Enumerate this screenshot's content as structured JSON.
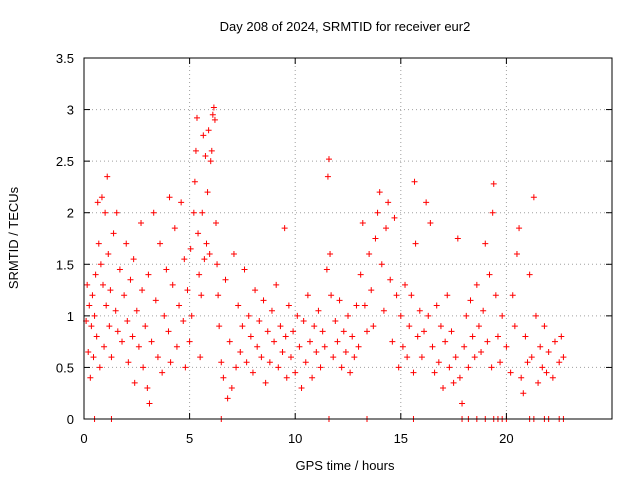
{
  "chart_data": {
    "type": "scatter",
    "title": "Day 208 of 2024, SRMTID for receiver eur2",
    "xlabel": "GPS time / hours",
    "ylabel": "SRMTID / TECUs",
    "xlim": [
      0,
      25
    ],
    "ylim": [
      0,
      3.5
    ],
    "xticks": [
      0,
      5,
      10,
      15,
      20
    ],
    "yticks": [
      0,
      0.5,
      1,
      1.5,
      2,
      2.5,
      3,
      3.5
    ],
    "xtick_labels": [
      "0",
      "5",
      "10",
      "15",
      "20"
    ],
    "ytick_labels": [
      "0",
      "0.5",
      "1",
      "1.5",
      "2",
      "2.5",
      "3",
      "3.5"
    ],
    "grid": true,
    "marker": "plus",
    "color": "#ff0000",
    "series": [
      {
        "name": "SRMTID",
        "points": [
          [
            0.1,
            0.95
          ],
          [
            0.15,
            1.3
          ],
          [
            0.2,
            0.65
          ],
          [
            0.25,
            1.1
          ],
          [
            0.3,
            0.4
          ],
          [
            0.35,
            0.9
          ],
          [
            0.4,
            1.2
          ],
          [
            0.45,
            0.6
          ],
          [
            0.5,
            1.0
          ],
          [
            0.55,
            1.4
          ],
          [
            0.6,
            0.8
          ],
          [
            0.65,
            2.1
          ],
          [
            0.7,
            1.7
          ],
          [
            0.75,
            0.5
          ],
          [
            0.8,
            1.5
          ],
          [
            0.85,
            2.15
          ],
          [
            0.9,
            1.3
          ],
          [
            0.95,
            0.7
          ],
          [
            1.0,
            2.0
          ],
          [
            1.05,
            1.1
          ],
          [
            1.1,
            2.35
          ],
          [
            1.15,
            1.6
          ],
          [
            1.2,
            0.9
          ],
          [
            1.25,
            1.25
          ],
          [
            1.3,
            0.6
          ],
          [
            1.4,
            1.8
          ],
          [
            1.5,
            1.05
          ],
          [
            1.55,
            2.0
          ],
          [
            1.6,
            0.85
          ],
          [
            1.7,
            1.45
          ],
          [
            1.8,
            0.75
          ],
          [
            1.9,
            1.2
          ],
          [
            2.0,
            1.7
          ],
          [
            2.05,
            0.95
          ],
          [
            2.1,
            0.55
          ],
          [
            2.2,
            1.35
          ],
          [
            2.3,
            0.8
          ],
          [
            2.35,
            1.55
          ],
          [
            2.4,
            0.35
          ],
          [
            2.5,
            1.05
          ],
          [
            2.6,
            0.7
          ],
          [
            2.7,
            1.9
          ],
          [
            2.75,
            1.25
          ],
          [
            2.8,
            0.5
          ],
          [
            2.9,
            0.9
          ],
          [
            3.0,
            0.3
          ],
          [
            3.05,
            1.4
          ],
          [
            3.1,
            0.15
          ],
          [
            3.2,
            0.75
          ],
          [
            3.3,
            2.0
          ],
          [
            3.4,
            1.15
          ],
          [
            3.5,
            0.6
          ],
          [
            3.6,
            1.7
          ],
          [
            3.7,
            0.45
          ],
          [
            3.8,
            1.0
          ],
          [
            3.9,
            1.45
          ],
          [
            4.0,
            0.85
          ],
          [
            4.05,
            2.15
          ],
          [
            4.1,
            0.55
          ],
          [
            4.2,
            1.3
          ],
          [
            4.3,
            1.85
          ],
          [
            4.4,
            0.7
          ],
          [
            4.5,
            1.1
          ],
          [
            4.6,
            2.1
          ],
          [
            4.7,
            0.95
          ],
          [
            4.75,
            1.55
          ],
          [
            4.8,
            0.5
          ],
          [
            4.9,
            1.25
          ],
          [
            5.0,
            0.75
          ],
          [
            5.05,
            1.65
          ],
          [
            5.1,
            1.0
          ],
          [
            5.2,
            2.0
          ],
          [
            5.25,
            2.3
          ],
          [
            5.3,
            2.6
          ],
          [
            5.35,
            2.92
          ],
          [
            5.4,
            1.8
          ],
          [
            5.45,
            1.4
          ],
          [
            5.5,
            0.6
          ],
          [
            5.55,
            1.2
          ],
          [
            5.6,
            2.0
          ],
          [
            5.65,
            2.75
          ],
          [
            5.7,
            1.55
          ],
          [
            5.75,
            2.55
          ],
          [
            5.8,
            1.7
          ],
          [
            5.85,
            2.2
          ],
          [
            5.9,
            2.8
          ],
          [
            5.95,
            1.6
          ],
          [
            6.0,
            2.5
          ],
          [
            6.05,
            2.6
          ],
          [
            6.1,
            2.95
          ],
          [
            6.15,
            3.02
          ],
          [
            6.2,
            2.9
          ],
          [
            6.25,
            1.9
          ],
          [
            6.3,
            1.5
          ],
          [
            6.35,
            1.2
          ],
          [
            6.4,
            0.9
          ],
          [
            6.5,
            0.55
          ],
          [
            6.6,
            0.4
          ],
          [
            6.7,
            1.35
          ],
          [
            6.8,
            0.2
          ],
          [
            6.9,
            0.75
          ],
          [
            7.0,
            0.3
          ],
          [
            7.1,
            1.6
          ],
          [
            7.2,
            0.5
          ],
          [
            7.3,
            1.1
          ],
          [
            7.4,
            0.65
          ],
          [
            7.5,
            0.9
          ],
          [
            7.6,
            1.45
          ],
          [
            7.7,
            0.55
          ],
          [
            7.8,
            1.0
          ],
          [
            7.9,
            0.8
          ],
          [
            8.0,
            0.45
          ],
          [
            8.1,
            1.25
          ],
          [
            8.2,
            0.7
          ],
          [
            8.3,
            0.95
          ],
          [
            8.4,
            0.6
          ],
          [
            8.5,
            1.15
          ],
          [
            8.6,
            0.35
          ],
          [
            8.7,
            0.85
          ],
          [
            8.8,
            0.55
          ],
          [
            8.9,
            1.05
          ],
          [
            9.0,
            0.75
          ],
          [
            9.1,
            1.3
          ],
          [
            9.2,
            0.5
          ],
          [
            9.3,
            0.9
          ],
          [
            9.4,
            0.65
          ],
          [
            9.5,
            1.85
          ],
          [
            9.55,
            0.8
          ],
          [
            9.6,
            0.4
          ],
          [
            9.7,
            1.1
          ],
          [
            9.8,
            0.6
          ],
          [
            9.9,
            0.85
          ],
          [
            10.0,
            0.45
          ],
          [
            10.1,
            1.0
          ],
          [
            10.2,
            0.7
          ],
          [
            10.3,
            0.3
          ],
          [
            10.4,
            0.95
          ],
          [
            10.5,
            0.55
          ],
          [
            10.6,
            1.2
          ],
          [
            10.7,
            0.75
          ],
          [
            10.8,
            0.4
          ],
          [
            10.9,
            0.9
          ],
          [
            11.0,
            0.65
          ],
          [
            11.1,
            1.05
          ],
          [
            11.2,
            0.5
          ],
          [
            11.3,
            0.85
          ],
          [
            11.4,
            0.7
          ],
          [
            11.5,
            1.45
          ],
          [
            11.55,
            2.35
          ],
          [
            11.6,
            2.52
          ],
          [
            11.65,
            1.6
          ],
          [
            11.7,
            1.2
          ],
          [
            11.8,
            0.6
          ],
          [
            11.9,
            0.95
          ],
          [
            12.0,
            0.75
          ],
          [
            12.1,
            1.15
          ],
          [
            12.2,
            0.5
          ],
          [
            12.3,
            0.85
          ],
          [
            12.4,
            0.65
          ],
          [
            12.5,
            1.0
          ],
          [
            12.6,
            0.45
          ],
          [
            12.7,
            0.8
          ],
          [
            12.8,
            0.6
          ],
          [
            12.9,
            1.1
          ],
          [
            13.0,
            0.7
          ],
          [
            13.1,
            1.4
          ],
          [
            13.2,
            1.9
          ],
          [
            13.3,
            1.1
          ],
          [
            13.4,
            0.85
          ],
          [
            13.5,
            1.6
          ],
          [
            13.6,
            1.25
          ],
          [
            13.7,
            0.9
          ],
          [
            13.8,
            1.75
          ],
          [
            13.9,
            2.0
          ],
          [
            14.0,
            2.2
          ],
          [
            14.1,
            1.5
          ],
          [
            14.2,
            1.05
          ],
          [
            14.3,
            1.85
          ],
          [
            14.4,
            2.1
          ],
          [
            14.5,
            1.35
          ],
          [
            14.6,
            0.75
          ],
          [
            14.7,
            1.95
          ],
          [
            14.8,
            1.2
          ],
          [
            14.9,
            0.5
          ],
          [
            15.0,
            1.0
          ],
          [
            15.1,
            0.7
          ],
          [
            15.2,
            1.3
          ],
          [
            15.3,
            0.6
          ],
          [
            15.4,
            0.9
          ],
          [
            15.5,
            1.2
          ],
          [
            15.6,
            0.45
          ],
          [
            15.65,
            2.3
          ],
          [
            15.7,
            1.7
          ],
          [
            15.8,
            0.8
          ],
          [
            15.9,
            1.05
          ],
          [
            16.0,
            0.6
          ],
          [
            16.1,
            0.85
          ],
          [
            16.2,
            2.1
          ],
          [
            16.3,
            1.0
          ],
          [
            16.4,
            1.9
          ],
          [
            16.5,
            0.7
          ],
          [
            16.6,
            0.45
          ],
          [
            16.7,
            1.1
          ],
          [
            16.8,
            0.55
          ],
          [
            16.9,
            0.9
          ],
          [
            17.0,
            0.3
          ],
          [
            17.1,
            0.75
          ],
          [
            17.2,
            1.2
          ],
          [
            17.3,
            0.5
          ],
          [
            17.4,
            0.85
          ],
          [
            17.5,
            0.35
          ],
          [
            17.6,
            0.6
          ],
          [
            17.7,
            1.75
          ],
          [
            17.8,
            0.4
          ],
          [
            17.9,
            0.15
          ],
          [
            18.0,
            0.7
          ],
          [
            18.1,
            1.0
          ],
          [
            18.2,
            0.5
          ],
          [
            18.3,
            1.15
          ],
          [
            18.4,
            0.8
          ],
          [
            18.5,
            0.6
          ],
          [
            18.6,
            1.3
          ],
          [
            18.7,
            0.9
          ],
          [
            18.8,
            0.65
          ],
          [
            18.9,
            1.05
          ],
          [
            19.0,
            1.7
          ],
          [
            19.1,
            0.75
          ],
          [
            19.2,
            1.4
          ],
          [
            19.3,
            0.5
          ],
          [
            19.35,
            2.0
          ],
          [
            19.4,
            2.28
          ],
          [
            19.5,
            1.2
          ],
          [
            19.6,
            0.8
          ],
          [
            19.7,
            0.55
          ],
          [
            19.8,
            1.0
          ],
          [
            20.0,
            0.7
          ],
          [
            20.2,
            0.45
          ],
          [
            20.3,
            1.2
          ],
          [
            20.4,
            0.9
          ],
          [
            20.5,
            1.6
          ],
          [
            20.6,
            1.85
          ],
          [
            20.7,
            0.4
          ],
          [
            20.8,
            0.25
          ],
          [
            20.9,
            0.8
          ],
          [
            21.0,
            0.55
          ],
          [
            21.1,
            1.4
          ],
          [
            21.2,
            0.6
          ],
          [
            21.3,
            2.15
          ],
          [
            21.4,
            1.0
          ],
          [
            21.5,
            0.35
          ],
          [
            21.6,
            0.7
          ],
          [
            21.7,
            0.5
          ],
          [
            21.8,
            0.9
          ],
          [
            21.9,
            0.45
          ],
          [
            22.0,
            0.65
          ],
          [
            22.2,
            0.4
          ],
          [
            22.3,
            0.75
          ],
          [
            22.5,
            0.55
          ],
          [
            22.6,
            0.8
          ],
          [
            22.7,
            0.6
          ],
          [
            0.5,
            0.0
          ],
          [
            1.3,
            0.0
          ],
          [
            6.5,
            0.0
          ],
          [
            11.6,
            0.0
          ],
          [
            13.4,
            0.0
          ],
          [
            15.6,
            0.0
          ],
          [
            17.9,
            0.0
          ],
          [
            18.2,
            0.0
          ],
          [
            18.6,
            0.0
          ],
          [
            19.0,
            0.0
          ],
          [
            19.4,
            0.0
          ],
          [
            19.6,
            0.0
          ],
          [
            19.8,
            0.0
          ],
          [
            20.0,
            0.0
          ],
          [
            21.1,
            0.0
          ],
          [
            21.3,
            0.0
          ],
          [
            21.8,
            0.0
          ],
          [
            22.0,
            0.0
          ],
          [
            22.5,
            0.0
          ],
          [
            22.7,
            0.0
          ]
        ]
      }
    ]
  }
}
